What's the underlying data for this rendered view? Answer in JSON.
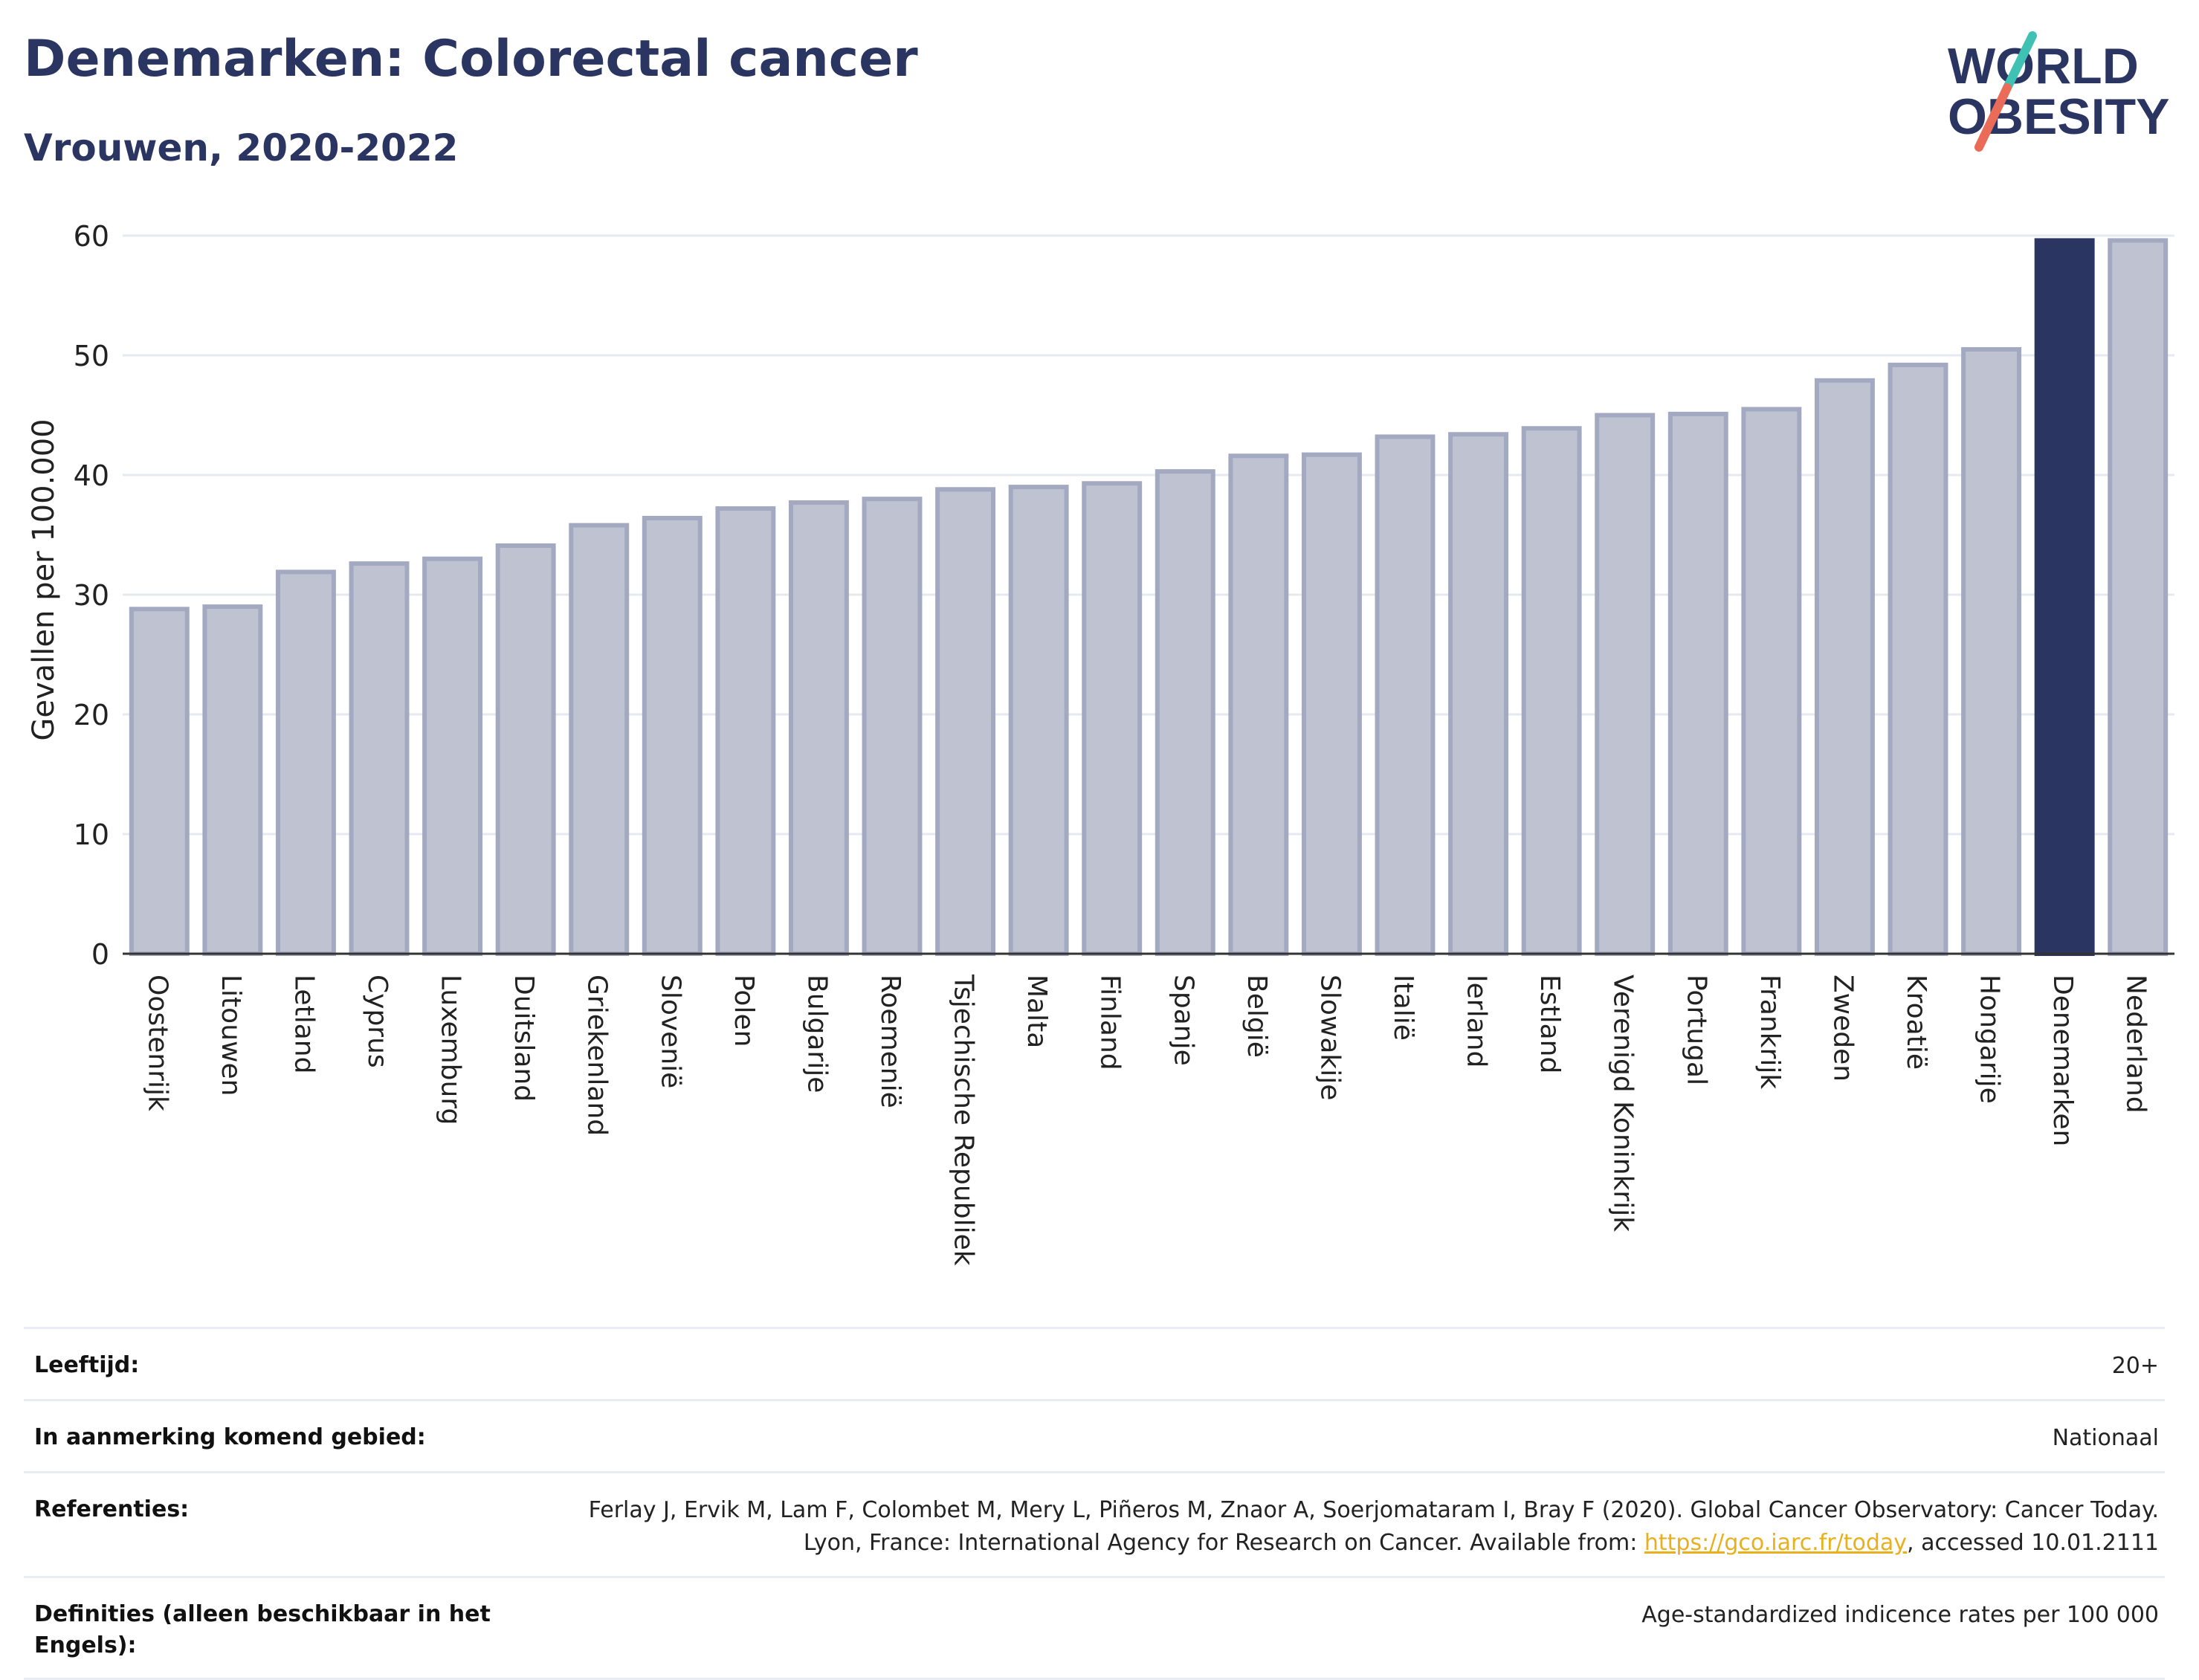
{
  "header": {
    "title": "Denemarken: Colorectal cancer",
    "subtitle": "Vrouwen, 2020-2022"
  },
  "logo": {
    "line1": "WORLD",
    "line2": "OBESITY"
  },
  "colors": {
    "bar_default": "#bfc3d1",
    "bar_border": "#a3a9c0",
    "bar_highlight": "#2b3561",
    "text_dark": "#2b3561",
    "link": "#e9b01e"
  },
  "chart_data": {
    "type": "bar",
    "ylabel": "Gevallen per 100.000",
    "xlabel": "",
    "ylim": [
      0,
      60
    ],
    "yticks": [
      0,
      10,
      20,
      30,
      40,
      50,
      60
    ],
    "grid": true,
    "highlight": "Denemarken",
    "categories": [
      "Oostenrijk",
      "Litouwen",
      "Letland",
      "Cyprus",
      "Luxemburg",
      "Duitsland",
      "Griekenland",
      "Slovenië",
      "Polen",
      "Bulgarije",
      "Roemenië",
      "Tsjechische Republiek",
      "Malta",
      "Finland",
      "Spanje",
      "België",
      "Slowakije",
      "Italië",
      "Ierland",
      "Estland",
      "Verenigd Koninkrijk",
      "Portugal",
      "Frankrijk",
      "Zweden",
      "Kroatië",
      "Hongarije",
      "Denemarken",
      "Nederland"
    ],
    "values": [
      28.8,
      29.0,
      31.9,
      32.6,
      33.0,
      34.1,
      35.8,
      36.4,
      37.2,
      37.7,
      38.0,
      38.8,
      39.0,
      39.3,
      40.3,
      41.6,
      41.7,
      43.2,
      43.4,
      43.9,
      45.0,
      45.1,
      45.5,
      47.9,
      49.2,
      50.5,
      59.6,
      59.6
    ]
  },
  "meta": [
    {
      "label": "Leeftijd:",
      "value": "20+"
    },
    {
      "label": "In aanmerking komend gebied:",
      "value": "Nationaal"
    },
    {
      "label": "Referenties:",
      "value_before": "Ferlay J, Ervik M, Lam F, Colombet M, Mery L, Piñeros M, Znaor A, Soerjomataram I, Bray F (2020). Global Cancer Observatory: Cancer Today. Lyon, France: International Agency for Research on Cancer. Available from: ",
      "link": "https://gco.iarc.fr/today",
      "value_after": ", accessed 10.01.2111"
    },
    {
      "label": "Definities (alleen beschikbaar in het Engels):",
      "value": "Age-standardized indicence rates per 100 000"
    }
  ]
}
